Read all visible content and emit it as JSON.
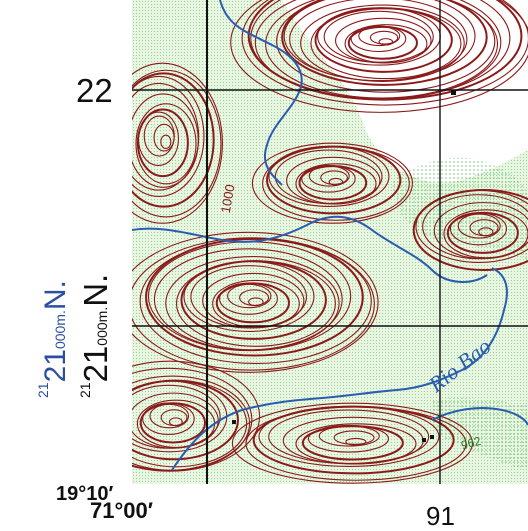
{
  "map": {
    "margin": {
      "northing_tick": "22",
      "latitude_corner": "19°10′",
      "longitude_corner": "71°00′",
      "easting_tick": "91",
      "black_northing": {
        "prefix": "21",
        "main": "21",
        "unit": "000m.",
        "suffix": "N."
      },
      "blue_northing": {
        "prefix": "21",
        "main": "21",
        "unit": "000m.",
        "suffix": "N."
      }
    },
    "labels": {
      "river_name": "Rio Bao",
      "contour_value": "1000",
      "spot_elevation": "962"
    },
    "colors": {
      "contour": "#8b1a1a",
      "water": "#2a5db0",
      "vegetation": "#7cc47c",
      "background": "#ffffff",
      "grid": "#111111"
    }
  }
}
